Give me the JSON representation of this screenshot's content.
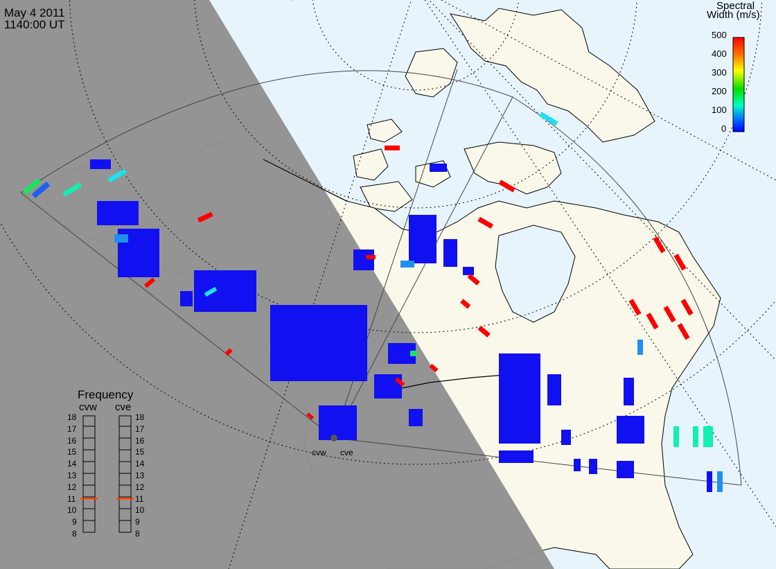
{
  "header": {
    "date": "May  4 2011",
    "time": "1140:00 UT"
  },
  "colorbar": {
    "title_line1": "Spectral",
    "title_line2": "Width (m/s)",
    "ticks": [
      "500",
      "400",
      "300",
      "200",
      "100",
      "0"
    ],
    "gradient": [
      "#ff0000",
      "#ff8000",
      "#ffff00",
      "#00e000",
      "#00ffc0",
      "#0080ff",
      "#0000ff"
    ]
  },
  "radars": {
    "left": "cvw",
    "right": "cve"
  },
  "frequency": {
    "title": "Frequency",
    "left_label": "cvw",
    "right_label": "cve",
    "ticks": [
      "18",
      "17",
      "16",
      "15",
      "14",
      "13",
      "12",
      "11",
      "10",
      "9",
      "8"
    ],
    "cvw_mhz": 10.9,
    "cve_mhz": 10.9
  },
  "colors": {
    "night": "#919191",
    "ocean_day": "#e8f4fc",
    "land_day": "#faf8ea",
    "scatter_blue": "#1010f0",
    "scatter_red": "#ff0000",
    "scatter_cyan": "#20e0f0",
    "scatter_green": "#20e060",
    "scatter_aqua": "#10f0b0",
    "scatter_lightblue": "#2090f0",
    "freq_marker": "#ff4000"
  }
}
